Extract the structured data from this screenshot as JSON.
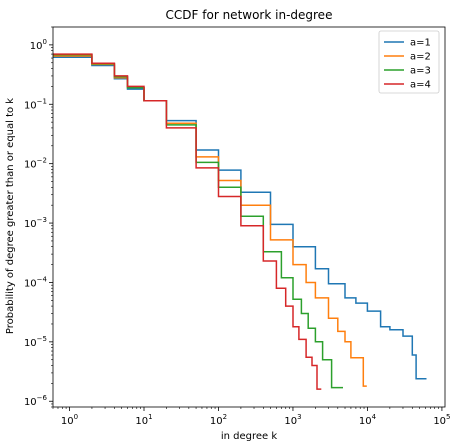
{
  "chart_data": {
    "type": "line",
    "title": "CCDF for network in-degree",
    "xlabel": "in degree k",
    "ylabel": "Probability of degree greater than or equal to k",
    "xscale": "log",
    "yscale": "log",
    "xlim": [
      0.6,
      110000
    ],
    "ylim": [
      8e-07,
      2
    ],
    "x_ticks": [
      {
        "value": 1,
        "base": "10",
        "exp": "0"
      },
      {
        "value": 10,
        "base": "10",
        "exp": "1"
      },
      {
        "value": 100,
        "base": "10",
        "exp": "2"
      },
      {
        "value": 1000,
        "base": "10",
        "exp": "3"
      },
      {
        "value": 10000,
        "base": "10",
        "exp": "4"
      },
      {
        "value": 100000,
        "base": "10",
        "exp": "5"
      }
    ],
    "y_ticks": [
      {
        "value": 1,
        "base": "10",
        "exp": "0"
      },
      {
        "value": 0.1,
        "base": "10",
        "exp": "−1"
      },
      {
        "value": 0.01,
        "base": "10",
        "exp": "−2"
      },
      {
        "value": 0.001,
        "base": "10",
        "exp": "−3"
      },
      {
        "value": 0.0001,
        "base": "10",
        "exp": "−4"
      },
      {
        "value": 1e-05,
        "base": "10",
        "exp": "−5"
      },
      {
        "value": 1e-06,
        "base": "10",
        "exp": "−6"
      }
    ],
    "legend_position": "top-right",
    "grid": false,
    "series": [
      {
        "name": "a=1",
        "color": "#1f77b4",
        "points": [
          [
            0.6,
            0.62
          ],
          [
            1,
            0.62
          ],
          [
            2,
            0.45
          ],
          [
            4,
            0.27
          ],
          [
            6,
            0.18
          ],
          [
            10,
            0.115
          ],
          [
            20,
            0.053
          ],
          [
            50,
            0.017
          ],
          [
            100,
            0.0078
          ],
          [
            200,
            0.0033
          ],
          [
            500,
            0.00095
          ],
          [
            1000,
            0.0004
          ],
          [
            2000,
            0.00017
          ],
          [
            3000,
            9.5e-05
          ],
          [
            5000,
            5.5e-05
          ],
          [
            7000,
            4.5e-05
          ],
          [
            10000,
            3.3e-05
          ],
          [
            15000,
            1.8e-05
          ],
          [
            20000,
            1.6e-05
          ],
          [
            30000,
            1.25e-05
          ],
          [
            40000,
            6e-06
          ],
          [
            45000,
            2.4e-06
          ],
          [
            62000,
            2.4e-06
          ]
        ]
      },
      {
        "name": "a=2",
        "color": "#ff7f0e",
        "points": [
          [
            0.6,
            0.65
          ],
          [
            1,
            0.65
          ],
          [
            2,
            0.47
          ],
          [
            4,
            0.28
          ],
          [
            6,
            0.19
          ],
          [
            10,
            0.115
          ],
          [
            20,
            0.048
          ],
          [
            50,
            0.013
          ],
          [
            100,
            0.0052
          ],
          [
            200,
            0.002
          ],
          [
            500,
            0.00052
          ],
          [
            1000,
            0.0002
          ],
          [
            1500,
            0.0001
          ],
          [
            2000,
            5.5e-05
          ],
          [
            3000,
            2.5e-05
          ],
          [
            4000,
            1.5e-05
          ],
          [
            5000,
            1e-05
          ],
          [
            6000,
            5.4e-06
          ],
          [
            8000,
            5.4e-06
          ],
          [
            8800,
            1.8e-06
          ],
          [
            9800,
            1.8e-06
          ]
        ]
      },
      {
        "name": "a=3",
        "color": "#2ca02c",
        "points": [
          [
            0.6,
            0.68
          ],
          [
            1,
            0.68
          ],
          [
            2,
            0.48
          ],
          [
            4,
            0.29
          ],
          [
            6,
            0.19
          ],
          [
            10,
            0.115
          ],
          [
            20,
            0.045
          ],
          [
            50,
            0.0105
          ],
          [
            100,
            0.004
          ],
          [
            200,
            0.0013
          ],
          [
            400,
            0.00033
          ],
          [
            700,
            0.00012
          ],
          [
            1000,
            5.2e-05
          ],
          [
            1300,
            3e-05
          ],
          [
            1600,
            1.7e-05
          ],
          [
            2000,
            1e-05
          ],
          [
            2500,
            5e-06
          ],
          [
            3000,
            5e-06
          ],
          [
            3300,
            1.7e-06
          ],
          [
            4700,
            1.7e-06
          ]
        ]
      },
      {
        "name": "a=4",
        "color": "#d62728",
        "points": [
          [
            0.6,
            0.7
          ],
          [
            1,
            0.7
          ],
          [
            2,
            0.49
          ],
          [
            4,
            0.3
          ],
          [
            6,
            0.2
          ],
          [
            10,
            0.115
          ],
          [
            20,
            0.04
          ],
          [
            50,
            0.0085
          ],
          [
            100,
            0.0028
          ],
          [
            200,
            0.0009
          ],
          [
            400,
            0.00023
          ],
          [
            600,
            8e-05
          ],
          [
            800,
            4e-05
          ],
          [
            1000,
            1.8e-05
          ],
          [
            1200,
            1.1e-05
          ],
          [
            1500,
            5.5e-06
          ],
          [
            1800,
            4e-06
          ],
          [
            2100,
            1.6e-06
          ],
          [
            2400,
            1.6e-06
          ]
        ]
      }
    ]
  }
}
